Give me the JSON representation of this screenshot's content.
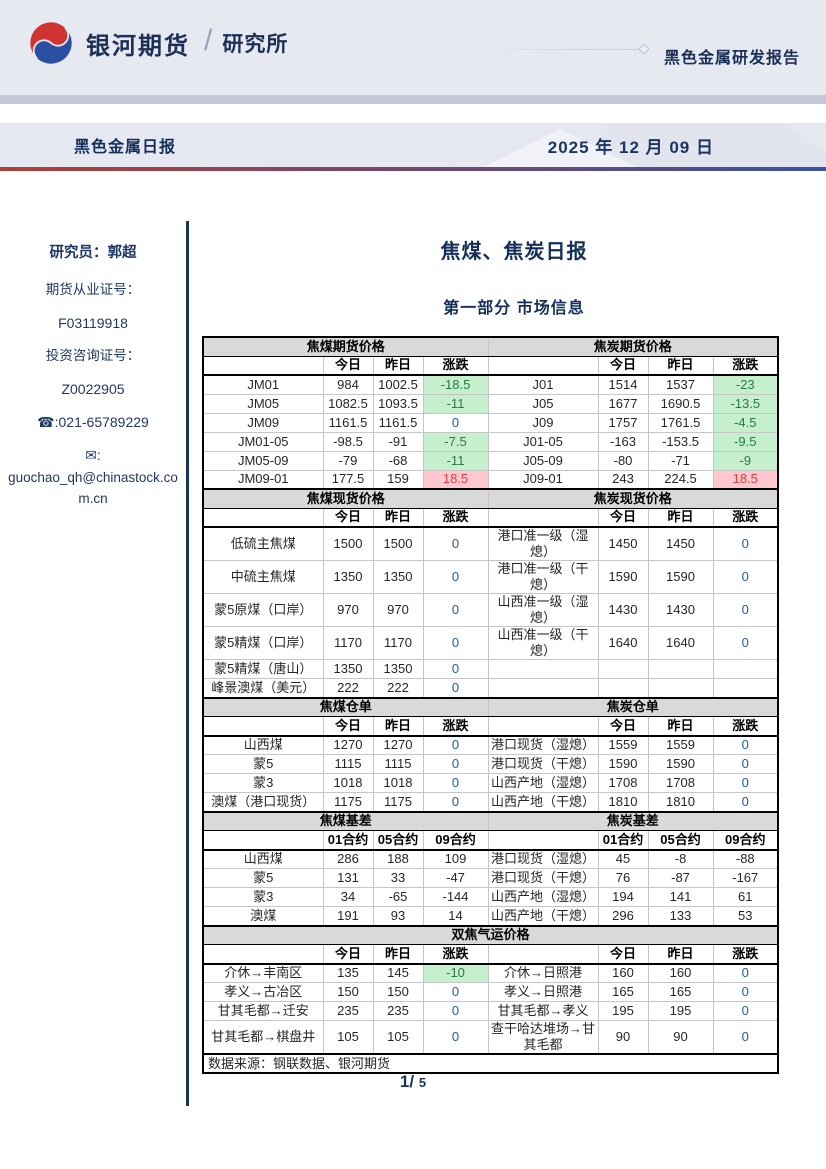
{
  "header": {
    "logo_text": "银河期货",
    "logo_sub": "研究所",
    "report_type": "黑色金属研发报告",
    "doc_title": "黑色金属日报",
    "date": "2025 年 12 月 09 日"
  },
  "icons": {
    "phone": "☎",
    "mail": "✉"
  },
  "sidebar": {
    "researcher": "研究员：郭超",
    "cert1_label": "期货从业证号：",
    "cert1_value": "F03119918",
    "cert2_label": "投资咨询证号：",
    "cert2_value": "Z0022905",
    "phone": ":021-65789229",
    "mail_sep": ":",
    "email": "guochao_qh@chinastock.com.cn"
  },
  "main": {
    "title": "焦煤、焦炭日报",
    "subtitle": "第一部分 市场信息",
    "page_current": "1/",
    "page_total": "5"
  },
  "price_table": {
    "source": "数据来源：钢联数据、银河期货",
    "sections": [
      {
        "titles": [
          "焦煤期货价格",
          "焦炭期货价格"
        ],
        "cols": [
          "",
          "今日",
          "昨日",
          "涨跌",
          "",
          "今日",
          "昨日",
          "涨跌"
        ],
        "rows": [
          [
            "JM01",
            "984",
            "1002.5",
            {
              "v": "-18.5",
              "s": "down"
            },
            "J01",
            "1514",
            "1537",
            {
              "v": "-23",
              "s": "down"
            }
          ],
          [
            "JM05",
            "1082.5",
            "1093.5",
            {
              "v": "-11",
              "s": "down"
            },
            "J05",
            "1677",
            "1690.5",
            {
              "v": "-13.5",
              "s": "down"
            }
          ],
          [
            "JM09",
            "1161.5",
            "1161.5",
            {
              "v": "0",
              "s": "zero"
            },
            "J09",
            "1757",
            "1761.5",
            {
              "v": "-4.5",
              "s": "down"
            }
          ],
          [
            "JM01-05",
            "-98.5",
            "-91",
            {
              "v": "-7.5",
              "s": "down"
            },
            "J01-05",
            "-163",
            "-153.5",
            {
              "v": "-9.5",
              "s": "down"
            }
          ],
          [
            "JM05-09",
            "-79",
            "-68",
            {
              "v": "-11",
              "s": "down"
            },
            "J05-09",
            "-80",
            "-71",
            {
              "v": "-9",
              "s": "down"
            }
          ],
          [
            "JM09-01",
            "177.5",
            "159",
            {
              "v": "18.5",
              "s": "up"
            },
            "J09-01",
            "243",
            "224.5",
            {
              "v": "18.5",
              "s": "up"
            }
          ]
        ]
      },
      {
        "titles": [
          "焦煤现货价格",
          "焦炭现货价格"
        ],
        "cols": [
          "",
          "今日",
          "昨日",
          "涨跌",
          "",
          "今日",
          "昨日",
          "涨跌"
        ],
        "rows": [
          [
            "低硫主焦煤",
            "1500",
            "1500",
            {
              "v": "0",
              "s": "zero"
            },
            "港口准一级（湿熄）",
            "1450",
            "1450",
            {
              "v": "0",
              "s": "zero"
            }
          ],
          [
            "中硫主焦煤",
            "1350",
            "1350",
            {
              "v": "0",
              "s": "zero"
            },
            "港口准一级（干熄）",
            "1590",
            "1590",
            {
              "v": "0",
              "s": "zero"
            }
          ],
          [
            "蒙5原煤（口岸）",
            "970",
            "970",
            {
              "v": "0",
              "s": "zero"
            },
            "山西准一级（湿熄）",
            "1430",
            "1430",
            {
              "v": "0",
              "s": "zero"
            }
          ],
          [
            "蒙5精煤（口岸）",
            "1170",
            "1170",
            {
              "v": "0",
              "s": "zero"
            },
            "山西准一级（干熄）",
            "1640",
            "1640",
            {
              "v": "0",
              "s": "zero"
            }
          ],
          [
            "蒙5精煤（唐山）",
            "1350",
            "1350",
            {
              "v": "0",
              "s": "zero"
            },
            "",
            "",
            "",
            ""
          ],
          [
            "峰景澳煤（美元）",
            "222",
            "222",
            {
              "v": "0",
              "s": "zero"
            },
            "",
            "",
            "",
            ""
          ]
        ]
      },
      {
        "titles": [
          "焦煤仓单",
          "焦炭仓单"
        ],
        "cols": [
          "",
          "今日",
          "昨日",
          "涨跌",
          "",
          "今日",
          "昨日",
          "涨跌"
        ],
        "rows": [
          [
            "山西煤",
            "1270",
            "1270",
            {
              "v": "0",
              "s": "zero"
            },
            "港口现货（湿熄）",
            "1559",
            "1559",
            {
              "v": "0",
              "s": "zero"
            }
          ],
          [
            "蒙5",
            "1115",
            "1115",
            {
              "v": "0",
              "s": "zero"
            },
            "港口现货（干熄）",
            "1590",
            "1590",
            {
              "v": "0",
              "s": "zero"
            }
          ],
          [
            "蒙3",
            "1018",
            "1018",
            {
              "v": "0",
              "s": "zero"
            },
            "山西产地（湿熄）",
            "1708",
            "1708",
            {
              "v": "0",
              "s": "zero"
            }
          ],
          [
            "澳煤（港口现货）",
            "1175",
            "1175",
            {
              "v": "0",
              "s": "zero"
            },
            "山西产地（干熄）",
            "1810",
            "1810",
            {
              "v": "0",
              "s": "zero"
            }
          ]
        ]
      },
      {
        "titles": [
          "焦煤基差",
          "焦炭基差"
        ],
        "cols": [
          "",
          "01合约",
          "05合约",
          "09合约",
          "",
          "01合约",
          "05合约",
          "09合约"
        ],
        "rows": [
          [
            "山西煤",
            "286",
            "188",
            "109",
            "港口现货（湿熄）",
            "45",
            "-8",
            "-88"
          ],
          [
            "蒙5",
            "131",
            "33",
            "-47",
            "港口现货（干熄）",
            "76",
            "-87",
            "-167"
          ],
          [
            "蒙3",
            "34",
            "-65",
            "-144",
            "山西产地（湿熄）",
            "194",
            "141",
            "61"
          ],
          [
            "澳煤",
            "191",
            "93",
            "14",
            "山西产地（干熄）",
            "296",
            "133",
            "53"
          ]
        ]
      },
      {
        "titles": [
          "双焦气运价格"
        ],
        "cols": [
          "",
          "今日",
          "昨日",
          "涨跌",
          "",
          "今日",
          "昨日",
          "涨跌"
        ],
        "rows": [
          [
            "介休→丰南区",
            "135",
            "145",
            {
              "v": "-10",
              "s": "down"
            },
            "介休→日照港",
            "160",
            "160",
            {
              "v": "0",
              "s": "zero"
            }
          ],
          [
            "孝义→古冶区",
            "150",
            "150",
            {
              "v": "0",
              "s": "zero"
            },
            "孝义→日照港",
            "165",
            "165",
            {
              "v": "0",
              "s": "zero"
            }
          ],
          [
            "甘其毛都→迁安",
            "235",
            "235",
            {
              "v": "0",
              "s": "zero"
            },
            "甘其毛都→孝义",
            "195",
            "195",
            {
              "v": "0",
              "s": "zero"
            }
          ],
          [
            "甘其毛都→棋盘井",
            "105",
            "105",
            {
              "v": "0",
              "s": "zero"
            },
            "查干哈达堆场→甘其毛都",
            "90",
            "90",
            {
              "v": "0",
              "s": "zero"
            }
          ]
        ]
      }
    ]
  }
}
